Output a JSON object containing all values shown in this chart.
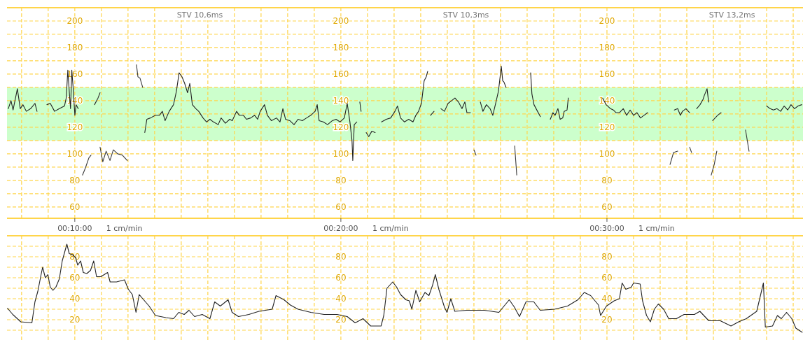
{
  "chart_data": [
    {
      "type": "line",
      "ylim": [
        51.5,
        210
      ],
      "y2lim": [
        51.5,
        210
      ],
      "y3lim": [
        51.5,
        210
      ],
      "xlim": [
        0.1242,
        0.6228
      ],
      "yticks": [
        60,
        {
          "value": 70,
          "label": null
        },
        80,
        {
          "value": 90,
          "label": null
        },
        100,
        {
          "value": 110,
          "label": null
        },
        120,
        {
          "value": 130,
          "label": null
        },
        140,
        {
          "value": 150,
          "label": null
        },
        160,
        {
          "value": 170,
          "label": null
        },
        180,
        {
          "value": 190,
          "label": null
        },
        200
      ],
      "y2ticks": [
        60,
        80,
        100,
        120,
        140,
        160,
        180,
        200
      ],
      "y3ticks": [
        60,
        80,
        100,
        120,
        140,
        160,
        180,
        200
      ],
      "xticks": [
        {
          "value": 0.133333,
          "label": null
        },
        {
          "value": 0.15,
          "label": null
        },
        {
          "value": 0.166667,
          "label": "00:10:00"
        },
        {
          "value": 0.183333,
          "label": null
        },
        {
          "value": 0.2,
          "label": null
        },
        {
          "value": 0.216667,
          "label": null
        },
        {
          "value": 0.233333,
          "label": null
        },
        {
          "value": 0.25,
          "label": null
        },
        {
          "value": 0.266667,
          "label": null
        },
        {
          "value": 0.283333,
          "label": null
        },
        {
          "value": 0.3,
          "label": null
        },
        {
          "value": 0.316667,
          "label": null
        },
        {
          "value": 0.333333,
          "label": "00:20:00"
        },
        {
          "value": 0.35,
          "label": null
        },
        {
          "value": 0.366667,
          "label": null
        },
        {
          "value": 0.383333,
          "label": null
        },
        {
          "value": 0.4,
          "label": null
        },
        {
          "value": 0.416667,
          "label": null
        },
        {
          "value": 0.433333,
          "label": null
        },
        {
          "value": 0.45,
          "label": null
        },
        {
          "value": 0.466667,
          "label": null
        },
        {
          "value": 0.483333,
          "label": null
        },
        {
          "value": 0.5,
          "label": "00:30:00"
        },
        {
          "value": 0.516667,
          "label": null
        },
        {
          "value": 0.533333,
          "label": null
        },
        {
          "value": 0.55,
          "label": null
        },
        {
          "value": 0.566667,
          "label": null
        },
        {
          "value": 0.583333,
          "label": null
        },
        {
          "value": 0.6,
          "label": null
        },
        {
          "value": 0.616667,
          "label": null
        }
      ],
      "grid": true,
      "bands": [
        {
          "axis": "y",
          "from": 110,
          "to": 150,
          "color": "#ccffcc"
        }
      ],
      "annotations": [
        "STV 10,6ms",
        "STV 10,3ms",
        "STV 13,2ms"
      ],
      "xlabel": "1 cm/min",
      "series": [
        {
          "color": "#222222",
          "x": [
            0.125,
            0.1267,
            0.128,
            0.1307,
            0.1325,
            0.1342,
            0.1363,
            0.139,
            0.1417,
            0.143,
            0.146,
            0.1492,
            0.1513,
            0.154,
            0.157,
            0.1602,
            0.1613,
            0.1623,
            0.1632,
            0.164,
            0.1648,
            0.1658,
            0.1667,
            0.1675,
            0.1688,
            0.1733,
            0.2105,
            0.2118,
            0.214,
            0.2172,
            0.2197,
            0.2215,
            0.2232,
            0.2258,
            0.2285,
            0.2303,
            0.232,
            0.2338,
            0.2355,
            0.2373,
            0.2387,
            0.2403,
            0.2425,
            0.2443,
            0.247,
            0.2492,
            0.2513,
            0.2535,
            0.2565,
            0.2583,
            0.261,
            0.2637,
            0.2653,
            0.268,
            0.2697,
            0.2723,
            0.2742,
            0.2768,
            0.2793,
            0.2812,
            0.2828,
            0.2855,
            0.2873,
            0.2898,
            0.293,
            0.2952,
            0.297,
            0.2987,
            0.3013,
            0.304,
            0.3065,
            0.3092,
            0.3118,
            0.3145,
            0.3172,
            0.3185,
            0.3197,
            0.3223,
            0.325,
            0.328,
            0.3303,
            0.3328,
            0.3355,
            0.3373,
            0.339,
            0.3403,
            0.3408,
            0.3417,
            0.3433,
            0.3442,
            0.3452,
            0.346,
            0.3475,
            0.3492,
            0.3508,
            0.3527,
            0.3548,
            0.3567,
            0.3588,
            0.3618,
            0.3645,
            0.3672,
            0.3688,
            0.3707,
            0.3732,
            0.3758,
            0.3785,
            0.3803,
            0.382,
            0.3838,
            0.3847,
            0.3855,
            0.3868,
            0.3877,
            0.3885,
            0.3895,
            0.3917,
            0.3938,
            0.396,
            0.3982,
            0.4005,
            0.4027,
            0.4048,
            0.407,
            0.4092,
            0.411,
            0.4123,
            0.4145,
            0.4175,
            0.4207,
            0.4223,
            0.4245,
            0.4268,
            0.4285,
            0.4303,
            0.432,
            0.4328,
            0.4338,
            0.4347,
            0.4355,
            0.4368,
            0.445,
            0.4522,
            0.453,
            0.4543,
            0.4565,
            0.4583,
            0.4617,
            0.4645,
            0.4662,
            0.4675,
            0.4693,
            0.4707,
            0.4723,
            0.4732,
            0.475,
            0.4758,
            0.4867,
            0.4973,
            0.4995,
            0.5022,
            0.504,
            0.5057,
            0.5078,
            0.5102,
            0.5123,
            0.5145,
            0.5167,
            0.5188,
            0.521,
            0.5232,
            0.5255,
            0.5333,
            0.5422,
            0.5443,
            0.546,
            0.5473,
            0.5495,
            0.5518,
            0.554,
            0.5562,
            0.5583,
            0.5602,
            0.561,
            0.5627,
            0.5637,
            0.565,
            0.6,
            0.6022,
            0.6043,
            0.6065,
            0.6088,
            0.611,
            0.6132,
            0.6153,
            0.6175,
            0.6197,
            0.622
          ],
          "values": [
            134,
            140,
            133,
            149,
            134,
            137,
            132,
            134,
            138,
            132,
            null,
            137,
            138,
            132,
            134,
            136,
            142,
            163,
            147,
            134,
            163,
            147,
            129,
            137,
            134,
            null,
            116,
            126,
            127,
            129,
            129,
            132,
            125,
            132,
            137,
            147,
            161,
            158,
            153,
            146,
            153,
            137,
            134,
            132,
            127,
            124,
            126,
            124,
            122,
            127,
            123,
            126,
            125,
            132,
            129,
            129,
            126,
            127,
            129,
            126,
            132,
            137,
            129,
            125,
            127,
            124,
            134,
            126,
            125,
            122,
            126,
            125,
            127,
            129,
            132,
            137,
            125,
            124,
            122,
            125,
            126,
            124,
            127,
            138,
            124,
            110,
            95,
            122,
            124,
            null,
            139,
            132,
            null,
            116,
            113,
            117,
            116,
            null,
            124,
            126,
            127,
            132,
            136,
            127,
            124,
            126,
            124,
            129,
            132,
            138,
            147,
            155,
            158,
            162,
            null,
            129,
            132,
            null,
            134,
            132,
            138,
            140,
            142,
            139,
            134,
            139,
            131,
            131,
            null,
            139,
            132,
            137,
            134,
            129,
            138,
            147,
            155,
            166,
            155,
            154,
            150,
            null,
            161,
            145,
            137,
            132,
            128,
            null,
            126,
            131,
            129,
            134,
            126,
            127,
            132,
            133,
            142,
            null,
            142,
            137,
            134,
            133,
            131,
            131,
            134,
            129,
            133,
            129,
            131,
            127,
            129,
            131,
            null,
            133,
            134,
            129,
            132,
            134,
            131,
            null,
            134,
            137,
            141,
            144,
            149,
            139,
            null,
            136,
            134,
            133,
            134,
            132,
            136,
            133,
            137,
            134,
            136,
            137
          ]
        },
        {
          "color": "#3a3a3a",
          "x": [
            0.1715,
            0.1732,
            0.1755,
            0.1768,
            0.18,
            0.1825,
            0.1842,
            0.1863,
            0.1887,
            0.1908,
            0.1935,
            0.1965,
            0.1995,
            0.2025,
            0.2053,
            0.2062,
            0.2075,
            0.2092,
            0.3,
            0.4167,
            0.418,
            0.43,
            0.4422,
            0.4435,
            0.4833,
            0.5395,
            0.5417,
            0.5443,
            0.5483,
            0.5518,
            0.553,
            0.5583,
            0.5653,
            0.5672,
            0.5688,
            0.5767,
            0.5868,
            0.589
          ],
          "values": [
            84,
            89,
            97,
            99,
            null,
            105,
            94,
            102,
            95,
            103,
            100,
            99,
            95,
            null,
            167,
            158,
            157,
            150,
            null,
            103,
            99,
            null,
            106,
            84,
            null,
            92,
            101,
            102,
            null,
            105,
            101,
            null,
            84,
            92,
            102,
            null,
            118,
            102
          ]
        },
        {
          "color": "#2a2a2a",
          "x": [
            0.179,
            0.1812,
            0.1825,
            0.37,
            0.5662,
            0.5693,
            0.5715
          ],
          "values": [
            137,
            142,
            146,
            null,
            125,
            129,
            131
          ]
        }
      ]
    },
    {
      "type": "line",
      "ylim": [
        0,
        100
      ],
      "y2lim": [
        0,
        100
      ],
      "y3lim": [
        0,
        100
      ],
      "xlim": [
        0.1242,
        0.6228
      ],
      "tick_labels": "y",
      "grid": true,
      "yticks": [
        {
          "value": 10,
          "label": null
        },
        20,
        {
          "value": 30,
          "label": null
        },
        40,
        {
          "value": 50,
          "label": null
        },
        60,
        {
          "value": 70,
          "label": null
        },
        80,
        {
          "value": 90,
          "label": null
        }
      ],
      "y2ticks": [
        20,
        40,
        60,
        80
      ],
      "y3ticks": [
        20,
        40,
        60,
        80
      ],
      "xticks": [
        {
          "value": 0.133333,
          "label": null
        },
        {
          "value": 0.15,
          "label": null
        },
        {
          "value": 0.166667,
          "label": null
        },
        {
          "value": 0.183333,
          "label": null
        },
        {
          "value": 0.2,
          "label": null
        },
        {
          "value": 0.216667,
          "label": null
        },
        {
          "value": 0.233333,
          "label": null
        },
        {
          "value": 0.25,
          "label": null
        },
        {
          "value": 0.266667,
          "label": null
        },
        {
          "value": 0.283333,
          "label": null
        },
        {
          "value": 0.3,
          "label": null
        },
        {
          "value": 0.316667,
          "label": null
        },
        {
          "value": 0.333333,
          "label": null
        },
        {
          "value": 0.35,
          "label": null
        },
        {
          "value": 0.366667,
          "label": null
        },
        {
          "value": 0.383333,
          "label": null
        },
        {
          "value": 0.4,
          "label": null
        },
        {
          "value": 0.416667,
          "label": null
        },
        {
          "value": 0.433333,
          "label": null
        },
        {
          "value": 0.45,
          "label": null
        },
        {
          "value": 0.466667,
          "label": null
        },
        {
          "value": 0.483333,
          "label": null
        },
        {
          "value": 0.5,
          "label": null
        },
        {
          "value": 0.516667,
          "label": null
        },
        {
          "value": 0.533333,
          "label": null
        },
        {
          "value": 0.55,
          "label": null
        },
        {
          "value": 0.566667,
          "label": null
        },
        {
          "value": 0.583333,
          "label": null
        },
        {
          "value": 0.6,
          "label": null
        },
        {
          "value": 0.616667,
          "label": null
        }
      ],
      "series": [
        {
          "color": "#222222",
          "x": [
            0.1245,
            0.1278,
            0.1328,
            0.1398,
            0.1417,
            0.1435,
            0.1453,
            0.1465,
            0.1482,
            0.1498,
            0.1513,
            0.153,
            0.1548,
            0.157,
            0.1588,
            0.1617,
            0.1632,
            0.1653,
            0.1672,
            0.1685,
            0.1703,
            0.172,
            0.1742,
            0.1765,
            0.1785,
            0.1803,
            0.183,
            0.1872,
            0.1888,
            0.1928,
            0.1978,
            0.2002,
            0.2027,
            0.205,
            0.207,
            0.2098,
            0.2132,
            0.2172,
            0.2237,
            0.2285,
            0.2318,
            0.2352,
            0.2382,
            0.2417,
            0.2465,
            0.2513,
            0.2543,
            0.2578,
            0.2627,
            0.2652,
            0.2692,
            0.2757,
            0.282,
            0.2903,
            0.2927,
            0.2977,
            0.3017,
            0.3065,
            0.3145,
            0.3228,
            0.331,
            0.3373,
            0.3423,
            0.3472,
            0.352,
            0.3585,
            0.3602,
            0.3622,
            0.3658,
            0.3683,
            0.3707,
            0.374,
            0.3762,
            0.3778,
            0.3803,
            0.3827,
            0.386,
            0.3885,
            0.3908,
            0.3925,
            0.3947,
            0.3982,
            0.3998,
            0.4022,
            0.4047,
            0.412,
            0.4232,
            0.4323,
            0.4388,
            0.442,
            0.4452,
            0.4493,
            0.4542,
            0.4582,
            0.4672,
            0.4753,
            0.4818,
            0.4858,
            0.4898,
            0.4947,
            0.496,
            0.4997,
            0.5045,
            0.5078,
            0.5095,
            0.5118,
            0.5152,
            0.5167,
            0.5208,
            0.5223,
            0.5248,
            0.5272,
            0.5297,
            0.5322,
            0.5355,
            0.5387,
            0.5435,
            0.5483,
            0.5548,
            0.5582,
            0.5638,
            0.571,
            0.5777,
            0.5825,
            0.5873,
            0.5938,
            0.5963,
            0.598,
            0.5992,
            0.6037,
            0.6068,
            0.6092,
            0.6125,
            0.6158,
            0.6183,
            0.6223
          ],
          "values": [
            31,
            25,
            18,
            17,
            37,
            47,
            61,
            70,
            60,
            63,
            51,
            48,
            51,
            59,
            76,
            92,
            83,
            82,
            79,
            72,
            76,
            65,
            64,
            67,
            76,
            61,
            61,
            65,
            56,
            56,
            58,
            49,
            44,
            27,
            44,
            39,
            33,
            24,
            22,
            21,
            27,
            25,
            29,
            23,
            25,
            21,
            37,
            33,
            39,
            27,
            23,
            25,
            28,
            30,
            43,
            39,
            34,
            30,
            27,
            25,
            25,
            23,
            17,
            21,
            14,
            14,
            24,
            50,
            56,
            51,
            44,
            39,
            38,
            30,
            48,
            37,
            46,
            43,
            53,
            63,
            49,
            32,
            27,
            40,
            28,
            29,
            29,
            27,
            39,
            32,
            23,
            37,
            37,
            29,
            30,
            33,
            39,
            46,
            43,
            34,
            24,
            33,
            38,
            40,
            55,
            49,
            51,
            55,
            54,
            38,
            24,
            18,
            30,
            35,
            30,
            21,
            21,
            25,
            25,
            28,
            19,
            19,
            14,
            18,
            21,
            28,
            44,
            55,
            13,
            14,
            24,
            21,
            27,
            21,
            12,
            8
          ]
        }
      ]
    }
  ]
}
